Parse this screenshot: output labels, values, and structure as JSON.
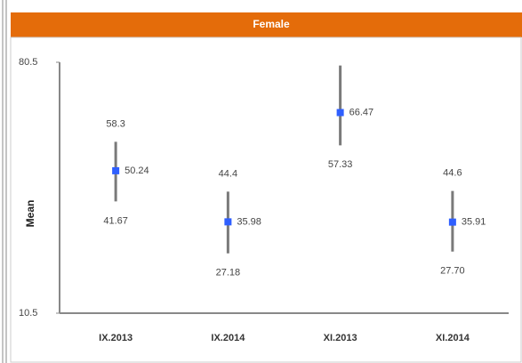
{
  "chart_data": {
    "type": "errorbar",
    "title": "Female",
    "ylabel": "Mean",
    "categories": [
      "IX.2013",
      "IX.2014",
      "XI.2013",
      "XI.2014"
    ],
    "values": [
      50.24,
      35.98,
      66.47,
      35.91
    ],
    "upper": [
      58.3,
      44.4,
      79.6,
      44.6
    ],
    "upper_labels": [
      "58.3",
      "44.4",
      null,
      "44.6"
    ],
    "lower": [
      41.67,
      27.18,
      57.33,
      27.7
    ],
    "lower_labels": [
      "41.67",
      "27.18",
      "57.33",
      "27.70"
    ],
    "color": "#2f5fff",
    "bar_color": "#7a7a7a",
    "ylim": [
      10.5,
      80.5
    ],
    "yticks": [
      10.5,
      80.5
    ]
  }
}
